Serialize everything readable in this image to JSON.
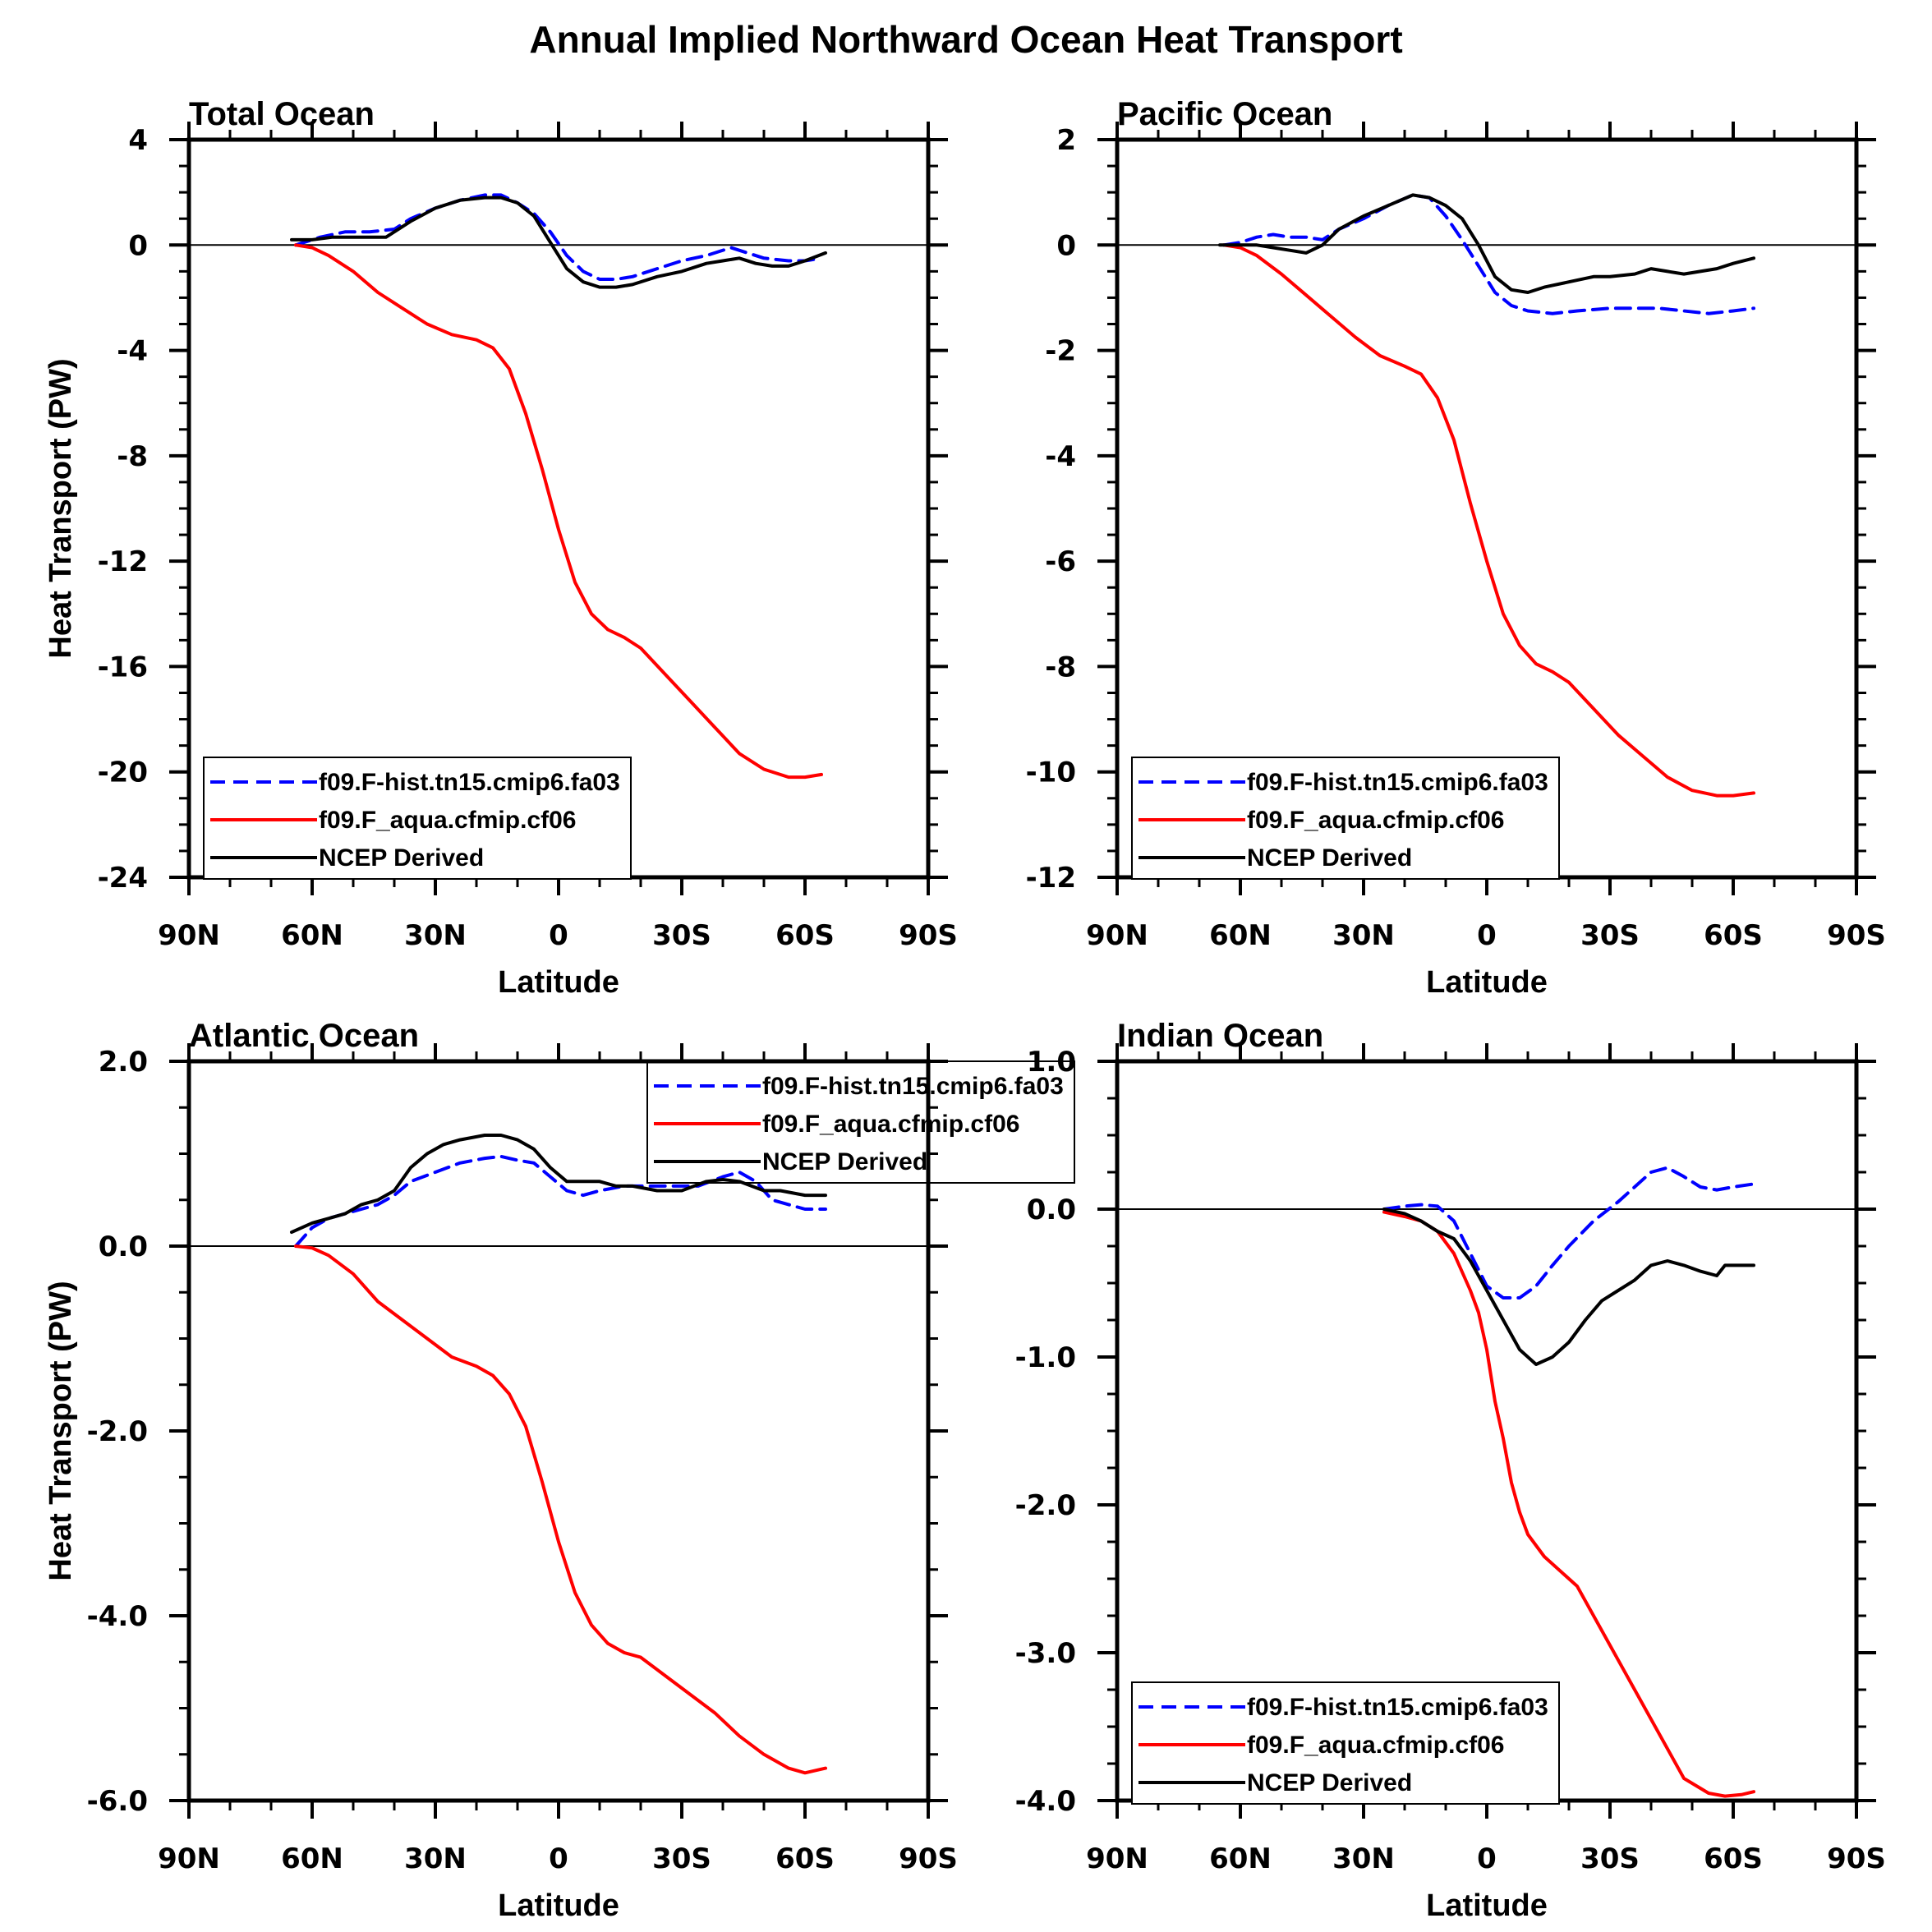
{
  "chart_data": {
    "title": "Annual Implied Northward Ocean Heat Transport",
    "type": "line",
    "legend_entries": [
      "f09.F-hist.tn15.cmip6.fa03",
      "f09.F_aqua.cfmip.cf06",
      "NCEP Derived"
    ],
    "series_styles": [
      {
        "name": "f09.F-hist.tn15.cmip6.fa03",
        "color": "#0000ff",
        "dash": "dashed"
      },
      {
        "name": "f09.F_aqua.cfmip.cf06",
        "color": "#ff0000",
        "dash": "solid"
      },
      {
        "name": "NCEP Derived",
        "color": "#000000",
        "dash": "solid"
      }
    ],
    "panels": [
      {
        "title": "Total Ocean",
        "xlabel": "Latitude",
        "ylabel": "Heat Transport (PW)",
        "xlim": [
          90,
          -90
        ],
        "x_ticks": [
          90,
          60,
          30,
          0,
          -30,
          -60,
          -90
        ],
        "x_tick_labels": [
          "90N",
          "60N",
          "30N",
          "0",
          "30S",
          "60S",
          "90S"
        ],
        "ylim": [
          -24,
          4
        ],
        "y_ticks": [
          4,
          0,
          -4,
          -8,
          -12,
          -16,
          -20,
          -24
        ],
        "y_tick_labels": [
          "4",
          "0",
          "-4",
          "-8",
          "-12",
          "-16",
          "-20",
          "-24"
        ],
        "legend_position": "bottom-left",
        "series": [
          {
            "name": "f09.F-hist.tn15.cmip6.fa03",
            "x": [
              64,
              58,
              52,
              46,
              40,
              36,
              30,
              24,
              18,
              14,
              10,
              6,
              2,
              -2,
              -6,
              -10,
              -14,
              -18,
              -24,
              -30,
              -36,
              -42,
              -46,
              -50,
              -56,
              -60,
              -64
            ],
            "y": [
              0.0,
              0.3,
              0.5,
              0.5,
              0.6,
              1.0,
              1.4,
              1.7,
              1.9,
              1.9,
              1.6,
              1.2,
              0.5,
              -0.4,
              -1.0,
              -1.3,
              -1.3,
              -1.2,
              -0.9,
              -0.6,
              -0.4,
              -0.1,
              -0.3,
              -0.5,
              -0.6,
              -0.6,
              -0.5
            ]
          },
          {
            "name": "f09.F_aqua.cfmip.cf06",
            "x": [
              64,
              60,
              56,
              50,
              44,
              38,
              32,
              26,
              20,
              16,
              12,
              8,
              4,
              0,
              -4,
              -8,
              -12,
              -16,
              -20,
              -26,
              -32,
              -38,
              -44,
              -50,
              -56,
              -60,
              -64
            ],
            "y": [
              0.0,
              -0.1,
              -0.4,
              -1.0,
              -1.8,
              -2.4,
              -3.0,
              -3.4,
              -3.6,
              -3.9,
              -4.7,
              -6.4,
              -8.5,
              -10.8,
              -12.8,
              -14.0,
              -14.6,
              -14.9,
              -15.3,
              -16.3,
              -17.3,
              -18.3,
              -19.3,
              -19.9,
              -20.2,
              -20.2,
              -20.1
            ]
          },
          {
            "name": "NCEP Derived",
            "x": [
              65,
              60,
              55,
              50,
              45,
              42,
              36,
              30,
              24,
              18,
              14,
              10,
              6,
              2,
              -2,
              -6,
              -10,
              -14,
              -18,
              -24,
              -30,
              -36,
              -40,
              -44,
              -48,
              -52,
              -56,
              -60,
              -65
            ],
            "y": [
              0.2,
              0.2,
              0.3,
              0.3,
              0.3,
              0.3,
              0.9,
              1.4,
              1.7,
              1.8,
              1.8,
              1.6,
              1.1,
              0.1,
              -0.9,
              -1.4,
              -1.6,
              -1.6,
              -1.5,
              -1.2,
              -1.0,
              -0.7,
              -0.6,
              -0.5,
              -0.7,
              -0.8,
              -0.8,
              -0.6,
              -0.3
            ]
          }
        ]
      },
      {
        "title": "Pacific Ocean",
        "xlabel": "Latitude",
        "ylabel": "",
        "xlim": [
          90,
          -90
        ],
        "x_ticks": [
          90,
          60,
          30,
          0,
          -30,
          -60,
          -90
        ],
        "x_tick_labels": [
          "90N",
          "60N",
          "30N",
          "0",
          "30S",
          "60S",
          "90S"
        ],
        "ylim": [
          -12,
          2
        ],
        "y_ticks": [
          2,
          0,
          -2,
          -4,
          -6,
          -8,
          -10,
          -12
        ],
        "y_tick_labels": [
          "2",
          "0",
          "-2",
          "-4",
          "-6",
          "-8",
          "-10",
          "-12"
        ],
        "legend_position": "bottom-left",
        "series": [
          {
            "name": "f09.F-hist.tn15.cmip6.fa03",
            "x": [
              64,
              60,
              56,
              52,
              48,
              44,
              40,
              36,
              30,
              24,
              18,
              14,
              10,
              6,
              2,
              -2,
              -6,
              -10,
              -16,
              -22,
              -30,
              -36,
              -42,
              -48,
              -54,
              -60,
              -65
            ],
            "y": [
              0.0,
              0.05,
              0.15,
              0.2,
              0.15,
              0.15,
              0.1,
              0.3,
              0.5,
              0.75,
              0.95,
              0.9,
              0.55,
              0.1,
              -0.4,
              -0.9,
              -1.15,
              -1.25,
              -1.3,
              -1.25,
              -1.2,
              -1.2,
              -1.2,
              -1.25,
              -1.3,
              -1.25,
              -1.2
            ]
          },
          {
            "name": "f09.F_aqua.cfmip.cf06",
            "x": [
              64,
              60,
              56,
              50,
              44,
              38,
              32,
              26,
              20,
              16,
              12,
              8,
              4,
              0,
              -4,
              -8,
              -12,
              -16,
              -20,
              -26,
              -32,
              -38,
              -44,
              -50,
              -56,
              -60,
              -65
            ],
            "y": [
              0.0,
              -0.05,
              -0.2,
              -0.55,
              -0.95,
              -1.35,
              -1.75,
              -2.1,
              -2.3,
              -2.45,
              -2.9,
              -3.7,
              -4.9,
              -6.0,
              -7.0,
              -7.6,
              -7.95,
              -8.1,
              -8.3,
              -8.8,
              -9.3,
              -9.7,
              -10.1,
              -10.35,
              -10.45,
              -10.45,
              -10.4
            ]
          },
          {
            "name": "NCEP Derived",
            "x": [
              65,
              60,
              56,
              52,
              48,
              44,
              40,
              36,
              30,
              24,
              18,
              14,
              10,
              6,
              2,
              -2,
              -6,
              -10,
              -14,
              -20,
              -26,
              -30,
              -36,
              -40,
              -44,
              -48,
              -52,
              -56,
              -60,
              -65
            ],
            "y": [
              0.0,
              0.0,
              0.0,
              -0.05,
              -0.1,
              -0.15,
              0.0,
              0.3,
              0.55,
              0.75,
              0.95,
              0.9,
              0.75,
              0.5,
              0.0,
              -0.6,
              -0.85,
              -0.9,
              -0.8,
              -0.7,
              -0.6,
              -0.6,
              -0.55,
              -0.45,
              -0.5,
              -0.55,
              -0.5,
              -0.45,
              -0.35,
              -0.25
            ]
          }
        ]
      },
      {
        "title": "Atlantic Ocean",
        "xlabel": "Latitude",
        "ylabel": "Heat Transport (PW)",
        "xlim": [
          90,
          -90
        ],
        "x_ticks": [
          90,
          60,
          30,
          0,
          -30,
          -60,
          -90
        ],
        "x_tick_labels": [
          "90N",
          "60N",
          "30N",
          "0",
          "30S",
          "60S",
          "90S"
        ],
        "ylim": [
          -6,
          2
        ],
        "y_ticks": [
          2,
          0,
          -2,
          -4,
          -6
        ],
        "y_tick_labels": [
          "2.0",
          "0.0",
          "-2.0",
          "-4.0",
          "-6.0"
        ],
        "legend_position": "top-right",
        "series": [
          {
            "name": "f09.F-hist.tn15.cmip6.fa03",
            "x": [
              64,
              60,
              56,
              52,
              48,
              44,
              40,
              36,
              30,
              24,
              18,
              14,
              10,
              6,
              2,
              -2,
              -6,
              -10,
              -16,
              -22,
              -28,
              -34,
              -40,
              -44,
              -48,
              -52,
              -56,
              -60,
              -65
            ],
            "y": [
              0.0,
              0.2,
              0.3,
              0.35,
              0.4,
              0.45,
              0.55,
              0.7,
              0.8,
              0.9,
              0.95,
              0.97,
              0.93,
              0.9,
              0.75,
              0.6,
              0.55,
              0.6,
              0.65,
              0.65,
              0.65,
              0.65,
              0.75,
              0.8,
              0.7,
              0.5,
              0.45,
              0.4,
              0.4
            ]
          },
          {
            "name": "f09.F_aqua.cfmip.cf06",
            "x": [
              64,
              60,
              56,
              50,
              44,
              38,
              32,
              26,
              20,
              16,
              12,
              8,
              4,
              0,
              -4,
              -8,
              -12,
              -16,
              -20,
              -26,
              -32,
              -38,
              -44,
              -50,
              -56,
              -60,
              -65
            ],
            "y": [
              0.0,
              -0.02,
              -0.1,
              -0.3,
              -0.6,
              -0.8,
              -1.0,
              -1.2,
              -1.3,
              -1.4,
              -1.6,
              -1.95,
              -2.55,
              -3.2,
              -3.75,
              -4.1,
              -4.3,
              -4.4,
              -4.45,
              -4.65,
              -4.85,
              -5.05,
              -5.3,
              -5.5,
              -5.65,
              -5.7,
              -5.65
            ]
          },
          {
            "name": "NCEP Derived",
            "x": [
              65,
              60,
              56,
              52,
              48,
              44,
              40,
              36,
              32,
              28,
              24,
              18,
              14,
              10,
              6,
              2,
              -2,
              -6,
              -10,
              -14,
              -18,
              -24,
              -30,
              -36,
              -40,
              -44,
              -50,
              -54,
              -60,
              -65
            ],
            "y": [
              0.15,
              0.25,
              0.3,
              0.35,
              0.45,
              0.5,
              0.6,
              0.85,
              1.0,
              1.1,
              1.15,
              1.2,
              1.2,
              1.15,
              1.05,
              0.85,
              0.7,
              0.7,
              0.7,
              0.65,
              0.65,
              0.6,
              0.6,
              0.7,
              0.72,
              0.7,
              0.6,
              0.6,
              0.55,
              0.55
            ]
          }
        ]
      },
      {
        "title": "Indian Ocean",
        "xlabel": "Latitude",
        "ylabel": "",
        "xlim": [
          90,
          -90
        ],
        "x_ticks": [
          90,
          60,
          30,
          0,
          -30,
          -60,
          -90
        ],
        "x_tick_labels": [
          "90N",
          "60N",
          "30N",
          "0",
          "30S",
          "60S",
          "90S"
        ],
        "ylim": [
          -4,
          1
        ],
        "y_ticks": [
          1,
          0,
          -1,
          -2,
          -3,
          -4
        ],
        "y_tick_labels": [
          "1.0",
          "0.0",
          "-1.0",
          "-2.0",
          "-3.0",
          "-4.0"
        ],
        "legend_position": "bottom-left",
        "series": [
          {
            "name": "f09.F-hist.tn15.cmip6.fa03",
            "x": [
              25,
              20,
              16,
              12,
              8,
              4,
              0,
              -4,
              -8,
              -12,
              -16,
              -20,
              -26,
              -32,
              -36,
              -40,
              -44,
              -48,
              -52,
              -56,
              -60,
              -65
            ],
            "y": [
              0.0,
              0.02,
              0.03,
              0.02,
              -0.08,
              -0.3,
              -0.52,
              -0.6,
              -0.6,
              -0.52,
              -0.38,
              -0.25,
              -0.08,
              0.05,
              0.15,
              0.25,
              0.28,
              0.22,
              0.15,
              0.13,
              0.15,
              0.17
            ]
          },
          {
            "name": "f09.F_aqua.cfmip.cf06",
            "x": [
              25,
              20,
              16,
              12,
              8,
              4,
              2,
              0,
              -2,
              -4,
              -6,
              -8,
              -10,
              -14,
              -18,
              -22,
              -26,
              -30,
              -36,
              -42,
              -48,
              -54,
              -58,
              -62,
              -65
            ],
            "y": [
              -0.02,
              -0.05,
              -0.08,
              -0.15,
              -0.3,
              -0.55,
              -0.7,
              -0.95,
              -1.3,
              -1.55,
              -1.85,
              -2.05,
              -2.2,
              -2.35,
              -2.45,
              -2.55,
              -2.75,
              -2.95,
              -3.25,
              -3.55,
              -3.85,
              -3.95,
              -3.97,
              -3.96,
              -3.94
            ]
          },
          {
            "name": "NCEP Derived",
            "x": [
              25,
              20,
              16,
              12,
              8,
              4,
              0,
              -4,
              -8,
              -12,
              -16,
              -20,
              -24,
              -28,
              -32,
              -36,
              -40,
              -44,
              -48,
              -52,
              -56,
              -58,
              -60,
              -65
            ],
            "y": [
              0.0,
              -0.03,
              -0.08,
              -0.15,
              -0.2,
              -0.35,
              -0.55,
              -0.75,
              -0.95,
              -1.05,
              -1.0,
              -0.9,
              -0.75,
              -0.62,
              -0.55,
              -0.48,
              -0.38,
              -0.35,
              -0.38,
              -0.42,
              -0.45,
              -0.38,
              -0.38,
              -0.38
            ]
          }
        ]
      }
    ]
  }
}
